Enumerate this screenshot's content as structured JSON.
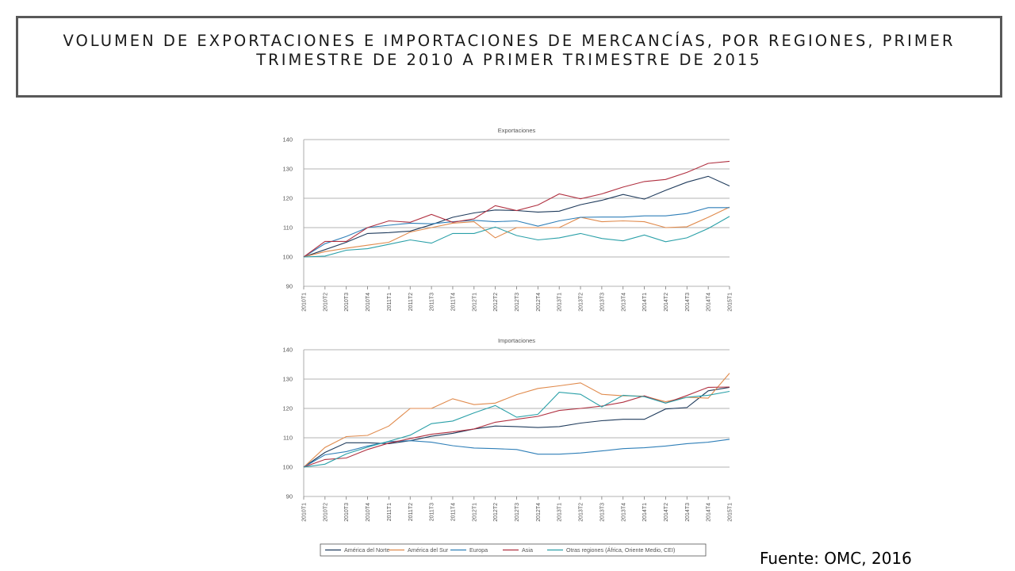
{
  "page": {
    "title_line1": "VOLUMEN DE EXPORTACIONES E IMPORTACIONES DE MERCANCÍAS, POR REGIONES, PRIMER",
    "title_line2": "TRIMESTRE DE 2010 A PRIMER TRIMESTRE DE 2015",
    "source": "Fuente: OMC, 2016"
  },
  "chart_data": [
    {
      "type": "line",
      "title": "Exportaciones",
      "ylim": [
        90,
        140
      ],
      "yticks": [
        90,
        100,
        110,
        120,
        130,
        140
      ],
      "grid": true,
      "categories": [
        "2010T1",
        "2010T2",
        "2010T3",
        "2010T4",
        "2011T1",
        "2011T2",
        "2011T3",
        "2011T4",
        "2012T1",
        "2012T2",
        "2012T3",
        "2012T4",
        "2013T1",
        "2013T2",
        "2013T3",
        "2013T4",
        "2014T1",
        "2014T2",
        "2014T3",
        "2014T4",
        "2015T1"
      ],
      "series": [
        {
          "name": "América del Norte",
          "color": "#1f3b5c",
          "values": [
            100,
            102.5,
            105,
            108,
            108.3,
            108.8,
            111,
            113.5,
            115,
            116,
            115.8,
            115.3,
            115.6,
            117.8,
            119.3,
            121.3,
            119.7,
            122.7,
            125.5,
            127.5,
            124.2
          ]
        },
        {
          "name": "América del Sur",
          "color": "#e08a4c",
          "values": [
            100,
            101.8,
            103,
            104,
            105,
            108.5,
            110,
            111.5,
            112,
            106.5,
            110,
            110,
            110,
            113.5,
            112,
            112.3,
            112,
            110,
            110.3,
            113.5,
            117
          ]
        },
        {
          "name": "Europa",
          "color": "#2f7fb8",
          "values": [
            100,
            104.5,
            107,
            110,
            110.8,
            111.5,
            111.3,
            112,
            112.5,
            112,
            112.3,
            110.5,
            112.3,
            113.5,
            113.6,
            113.6,
            114,
            114,
            114.8,
            116.8,
            116.8
          ]
        },
        {
          "name": "Asia",
          "color": "#b03040",
          "values": [
            100,
            105.3,
            105.3,
            110,
            112.3,
            111.8,
            114.5,
            111.8,
            113,
            117.5,
            115.8,
            117.7,
            121.5,
            119.8,
            121.5,
            123.8,
            125.7,
            126.4,
            128.8,
            131.9,
            132.6
          ]
        },
        {
          "name": "Otras regiones (África, Oriente Medio, CEI)",
          "color": "#2aa0a8",
          "values": [
            100,
            100.3,
            102.3,
            102.8,
            104.3,
            105.8,
            104.7,
            108,
            108,
            110.2,
            107.3,
            105.8,
            106.5,
            108,
            106.3,
            105.5,
            107.5,
            105.2,
            106.5,
            109.7,
            113.8
          ]
        }
      ]
    },
    {
      "type": "line",
      "title": "Importaciones",
      "ylim": [
        90,
        140
      ],
      "yticks": [
        90,
        100,
        110,
        120,
        130,
        140
      ],
      "grid": true,
      "categories": [
        "2010T1",
        "2010T2",
        "2010T3",
        "2010T4",
        "2011T1",
        "2011T2",
        "2011T3",
        "2011T4",
        "2012T1",
        "2012T2",
        "2012T3",
        "2012T4",
        "2013T1",
        "2013T2",
        "2013T3",
        "2013T4",
        "2014T1",
        "2014T2",
        "2014T3",
        "2014T4",
        "2015T1"
      ],
      "series": [
        {
          "name": "América del Norte",
          "color": "#1f3b5c",
          "values": [
            100,
            105,
            108.3,
            108.3,
            108,
            109,
            110.5,
            111.5,
            113,
            114,
            113.8,
            113.5,
            113.8,
            115,
            115.8,
            116.3,
            116.3,
            119.8,
            120.3,
            126,
            127.2
          ]
        },
        {
          "name": "América del Sur",
          "color": "#e08a4c",
          "values": [
            100,
            106.7,
            110.4,
            110.8,
            114,
            120,
            120,
            123.3,
            121.3,
            121.8,
            124.7,
            126.8,
            127.7,
            128.7,
            124.8,
            124.3,
            124.2,
            122.3,
            123.8,
            123.5,
            132
          ]
        },
        {
          "name": "Europa",
          "color": "#2f7fb8",
          "values": [
            100,
            104.2,
            105.3,
            107.2,
            108.7,
            109,
            108.5,
            107.3,
            106.5,
            106.3,
            106,
            104.4,
            104.4,
            104.8,
            105.5,
            106.3,
            106.6,
            107.2,
            108,
            108.5,
            109.5
          ]
        },
        {
          "name": "Asia",
          "color": "#b03040",
          "values": [
            100,
            102.6,
            103.1,
            106,
            108.2,
            109.7,
            111.2,
            112,
            113,
            115.3,
            116.3,
            117.3,
            119.3,
            120,
            120.8,
            122.1,
            124.3,
            121.8,
            124.4,
            127.2,
            127.3
          ]
        },
        {
          "name": "Otras regiones (África, Oriente Medio, CEI)",
          "color": "#2aa0a8",
          "values": [
            100,
            101,
            104.5,
            106.8,
            108.8,
            110.9,
            114.8,
            115.7,
            118.5,
            121,
            117,
            118,
            125.5,
            124.8,
            120.5,
            124.5,
            124,
            121.8,
            123.8,
            124.5,
            125.8
          ]
        }
      ]
    }
  ],
  "legend": {
    "placement": "bottom",
    "items": [
      {
        "name": "América del Norte",
        "color": "#1f3b5c"
      },
      {
        "name": "América del Sur",
        "color": "#e08a4c"
      },
      {
        "name": "Europa",
        "color": "#2f7fb8"
      },
      {
        "name": "Asia",
        "color": "#b03040"
      },
      {
        "name": "Otras regiones (África, Oriente Medio, CEI)",
        "color": "#2aa0a8"
      }
    ]
  }
}
